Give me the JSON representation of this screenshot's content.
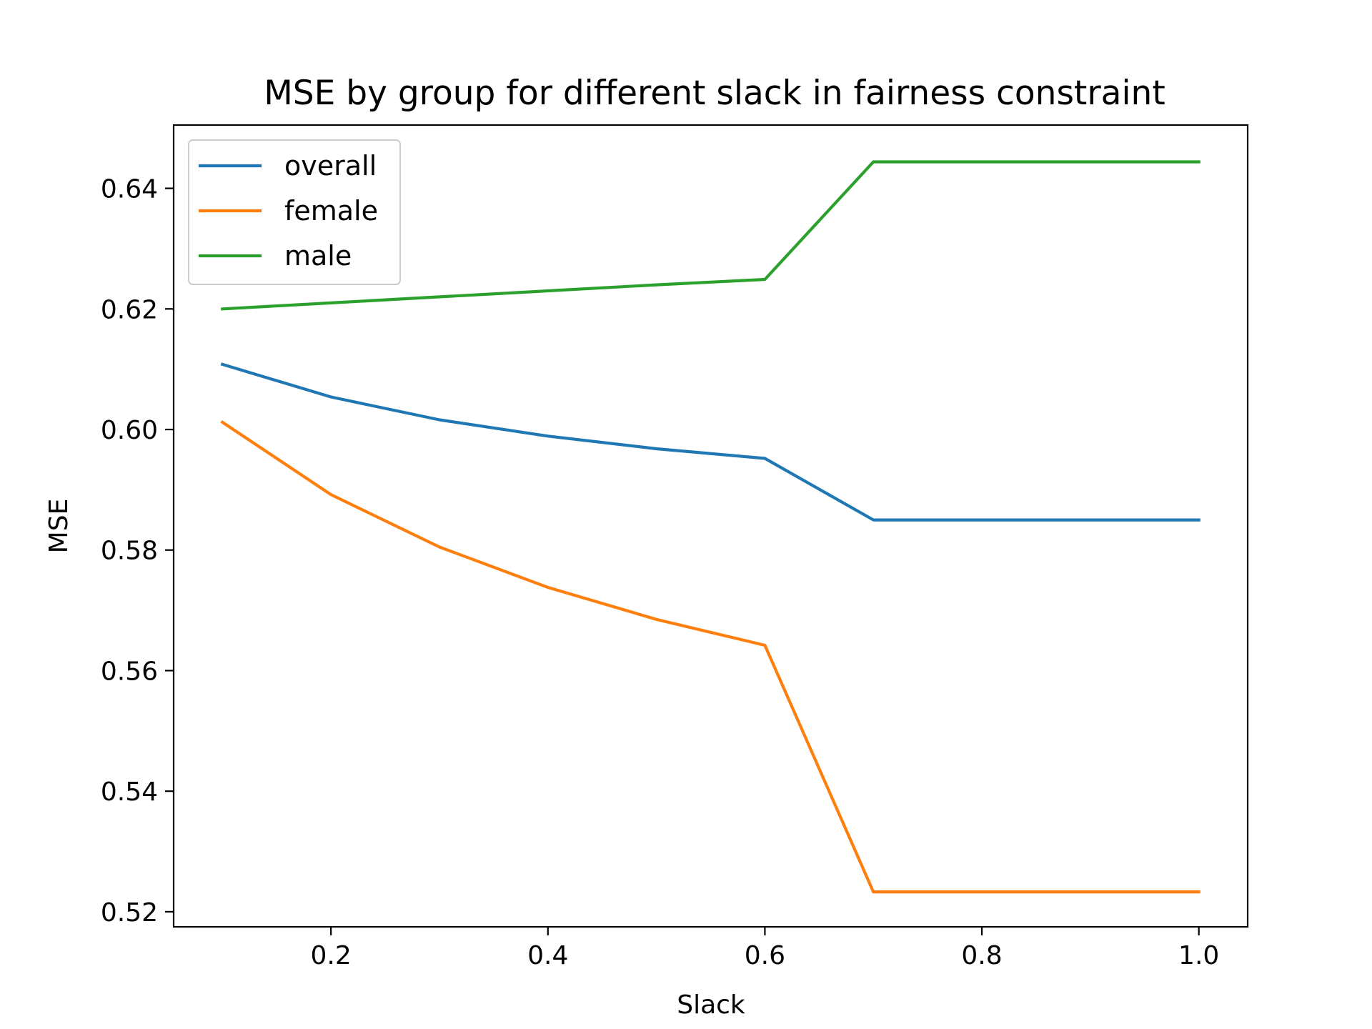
{
  "chart_data": {
    "type": "line",
    "title": "MSE by group for different slack in fairness constraint",
    "xlabel": "Slack",
    "ylabel": "MSE",
    "x": [
      0.1,
      0.2,
      0.3,
      0.4,
      0.5,
      0.6,
      0.7,
      0.8,
      0.9,
      1.0
    ],
    "xlim": [
      0.055,
      1.045
    ],
    "ylim": [
      0.5175,
      0.6505
    ],
    "xticks": [
      0.2,
      0.4,
      0.6,
      0.8,
      1.0
    ],
    "xtick_labels": [
      "0.2",
      "0.4",
      "0.6",
      "0.8",
      "1.0"
    ],
    "yticks": [
      0.52,
      0.54,
      0.56,
      0.58,
      0.6,
      0.62,
      0.64
    ],
    "ytick_labels": [
      "0.52",
      "0.54",
      "0.56",
      "0.58",
      "0.60",
      "0.62",
      "0.64"
    ],
    "grid": false,
    "legend_position": "upper-left",
    "series": [
      {
        "name": "overall",
        "color": "#1f77b4",
        "values": [
          0.6108,
          0.6054,
          0.6016,
          0.5989,
          0.5968,
          0.5952,
          0.585,
          0.585,
          0.585,
          0.585
        ]
      },
      {
        "name": "female",
        "color": "#ff7f0e",
        "values": [
          0.6012,
          0.5892,
          0.5805,
          0.5738,
          0.5685,
          0.5642,
          0.5233,
          0.5233,
          0.5233,
          0.5233
        ]
      },
      {
        "name": "male",
        "color": "#2ca02c",
        "values": [
          0.62,
          0.621,
          0.622,
          0.623,
          0.624,
          0.6249,
          0.6444,
          0.6444,
          0.6444,
          0.6444
        ]
      }
    ]
  }
}
